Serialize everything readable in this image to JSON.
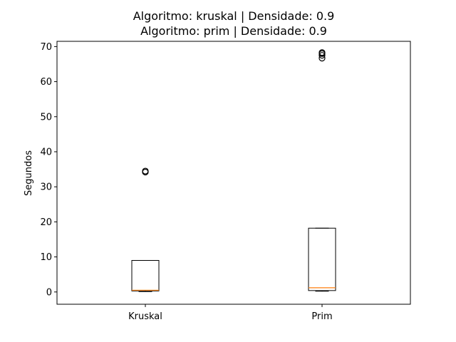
{
  "chart_data": {
    "type": "box",
    "title_lines": [
      "Algoritmo: kruskal | Densidade: 0.9",
      "Algoritmo: prim | Densidade: 0.9"
    ],
    "xlabel": "",
    "ylabel": "Segundos",
    "categories": [
      "Kruskal",
      "Prim"
    ],
    "ylim": [
      -3.5,
      71.5
    ],
    "yticks": [
      0,
      10,
      20,
      30,
      40,
      50,
      60,
      70
    ],
    "grid": false,
    "boxes": [
      {
        "name": "Kruskal",
        "whisker_low": 0.1,
        "q1": 0.3,
        "median": 0.5,
        "q3": 9.0,
        "whisker_high": 9.0,
        "outliers": [
          34.2,
          34.5
        ]
      },
      {
        "name": "Prim",
        "whisker_low": 0.2,
        "q1": 0.4,
        "median": 1.2,
        "q3": 18.2,
        "whisker_high": 18.2,
        "outliers": [
          66.7,
          67.5,
          68.0,
          68.3
        ]
      }
    ],
    "colors": {
      "box": "#000000",
      "median": "#ff7f0e",
      "background": "#ffffff"
    }
  }
}
